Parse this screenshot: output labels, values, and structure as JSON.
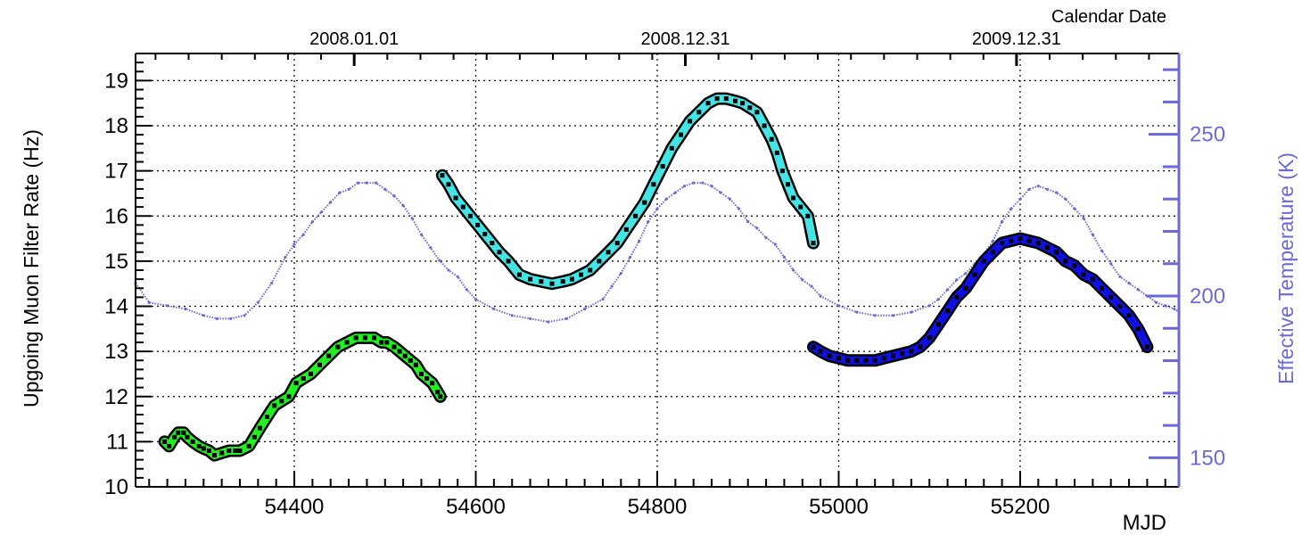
{
  "chart_data": {
    "type": "line",
    "xlabel": "MJD",
    "ylabel": "Upgoing Muon Filter Rate (Hz)",
    "y2label": "Effective Temperature (K)",
    "top_axis_label": "Calendar Date",
    "xlim": [
      54225,
      55375
    ],
    "ylim": [
      10,
      19.6
    ],
    "y2lim": [
      141,
      275
    ],
    "grid": true,
    "x_ticks": [
      "54400",
      "54600",
      "54800",
      "55000",
      "55200"
    ],
    "y_ticks": [
      "10",
      "11",
      "12",
      "13",
      "14",
      "15",
      "16",
      "17",
      "18",
      "19"
    ],
    "y2_ticks": [
      "150",
      "200",
      "250"
    ],
    "top_ticks": [
      {
        "label": "2008.01.01",
        "mjd": 54466
      },
      {
        "label": "2008.12.31",
        "mjd": 54831
      },
      {
        "label": "2009.12.31",
        "mjd": 55196
      }
    ],
    "colors": {
      "green_series": "#22ee22",
      "cyan_series": "#44e4e4",
      "blue_series": "#1010e0",
      "temperature": "#6a6ad6",
      "outline": "#000000"
    },
    "series": [
      {
        "name": "",
        "color": "green_series",
        "x": [
          54257,
          54262,
          54268,
          54272,
          54278,
          54282,
          54288,
          54295,
          54300,
          54306,
          54312,
          54320,
          54328,
          54335,
          54340,
          54350,
          54356,
          54362,
          54370,
          54378,
          54386,
          54394,
          54402,
          54410,
          54418,
          54428,
          54438,
          54448,
          54458,
          54468,
          54478,
          54488,
          54496,
          54502,
          54510,
          54516,
          54522,
          54528,
          54534,
          54540,
          54546,
          54552,
          54558,
          54561
        ],
        "y": [
          11.0,
          10.9,
          11.1,
          11.2,
          11.2,
          11.1,
          11.0,
          10.9,
          10.85,
          10.8,
          10.7,
          10.75,
          10.8,
          10.8,
          10.8,
          10.9,
          11.1,
          11.3,
          11.55,
          11.8,
          11.9,
          12.0,
          12.3,
          12.4,
          12.5,
          12.7,
          12.9,
          13.1,
          13.2,
          13.3,
          13.3,
          13.3,
          13.2,
          13.2,
          13.1,
          13.0,
          12.9,
          12.8,
          12.7,
          12.5,
          12.4,
          12.3,
          12.1,
          12.0
        ]
      },
      {
        "name": "",
        "color": "cyan_series",
        "x": [
          54563,
          54570,
          54578,
          54586,
          54594,
          54602,
          54610,
          54618,
          54626,
          54636,
          54648,
          54660,
          54672,
          54684,
          54696,
          54706,
          54716,
          54726,
          54736,
          54746,
          54756,
          54766,
          54776,
          54786,
          54796,
          54806,
          54816,
          54826,
          54836,
          54846,
          54856,
          54866,
          54876,
          54886,
          54894,
          54902,
          54910,
          54918,
          54926,
          54932,
          54938,
          54944,
          54950,
          54958,
          54966,
          54972
        ],
        "y": [
          16.9,
          16.7,
          16.4,
          16.2,
          16.0,
          15.8,
          15.6,
          15.4,
          15.2,
          15.0,
          14.7,
          14.6,
          14.55,
          14.5,
          14.55,
          14.6,
          14.7,
          14.8,
          15.0,
          15.2,
          15.4,
          15.7,
          16.0,
          16.3,
          16.7,
          17.1,
          17.5,
          17.8,
          18.1,
          18.3,
          18.5,
          18.6,
          18.6,
          18.55,
          18.5,
          18.4,
          18.3,
          18.0,
          17.7,
          17.4,
          17.0,
          16.7,
          16.4,
          16.2,
          16.0,
          15.4
        ]
      },
      {
        "name": "",
        "color": "blue_series",
        "x": [
          54972,
          54980,
          54990,
          55000,
          55010,
          55020,
          55030,
          55040,
          55050,
          55060,
          55070,
          55080,
          55090,
          55100,
          55110,
          55120,
          55130,
          55140,
          55150,
          55160,
          55170,
          55180,
          55190,
          55200,
          55210,
          55220,
          55230,
          55240,
          55250,
          55260,
          55270,
          55280,
          55290,
          55300,
          55310,
          55320,
          55330,
          55340
        ],
        "y": [
          13.1,
          13.0,
          12.9,
          12.85,
          12.8,
          12.8,
          12.8,
          12.8,
          12.85,
          12.9,
          12.95,
          13.0,
          13.1,
          13.3,
          13.6,
          13.9,
          14.2,
          14.4,
          14.7,
          15.0,
          15.2,
          15.4,
          15.45,
          15.5,
          15.45,
          15.4,
          15.3,
          15.2,
          15.0,
          14.9,
          14.7,
          14.6,
          14.4,
          14.2,
          14.0,
          13.8,
          13.5,
          13.1
        ]
      },
      {
        "name": "",
        "color": "temperature",
        "axis": "right",
        "x": [
          54225,
          54240,
          54260,
          54280,
          54300,
          54315,
          54330,
          54345,
          54360,
          54375,
          54390,
          54400,
          54410,
          54420,
          54430,
          54440,
          54450,
          54460,
          54470,
          54480,
          54490,
          54500,
          54510,
          54520,
          54530,
          54540,
          54550,
          54560,
          54570,
          54580,
          54590,
          54600,
          54620,
          54640,
          54660,
          54680,
          54700,
          54720,
          54740,
          54750,
          54760,
          54770,
          54780,
          54790,
          54800,
          54810,
          54820,
          54830,
          54840,
          54850,
          54860,
          54870,
          54880,
          54890,
          54900,
          54910,
          54920,
          54930,
          54940,
          54950,
          54960,
          54970,
          54980,
          55000,
          55020,
          55040,
          55060,
          55080,
          55100,
          55110,
          55120,
          55130,
          55140,
          55150,
          55160,
          55170,
          55180,
          55190,
          55200,
          55210,
          55220,
          55230,
          55240,
          55250,
          55260,
          55270,
          55280,
          55290,
          55300,
          55310,
          55320,
          55330,
          55340,
          55350,
          55360,
          55370,
          55375
        ],
        "y": [
          204,
          198,
          197,
          196,
          194,
          193,
          193,
          194,
          198,
          204,
          212,
          216,
          219,
          223,
          226,
          229,
          232,
          233,
          235,
          235,
          235,
          233,
          231,
          228,
          224,
          219,
          215,
          211,
          208,
          206,
          202,
          199,
          196,
          194,
          193,
          192,
          193,
          196,
          199,
          203,
          207,
          212,
          217,
          223,
          227,
          230,
          232,
          234,
          235,
          235,
          234,
          232,
          230,
          227,
          223,
          221,
          218,
          216,
          212,
          208,
          205,
          203,
          200,
          197,
          195,
          194,
          194,
          195,
          197,
          199,
          202,
          205,
          207,
          210,
          213,
          217,
          223,
          227,
          230,
          233,
          234,
          233,
          232,
          230,
          227,
          224,
          219,
          214,
          210,
          206,
          204,
          202,
          200,
          198,
          197,
          196,
          195
        ]
      }
    ]
  }
}
